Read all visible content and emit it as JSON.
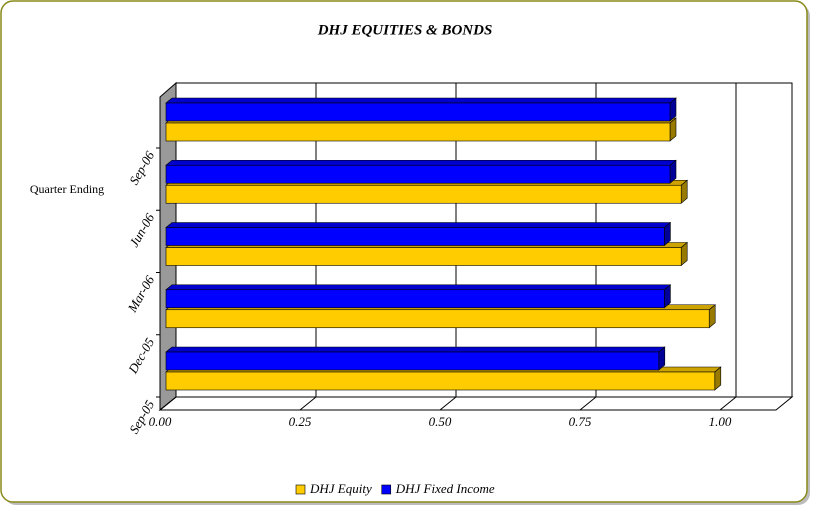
{
  "chart_data": {
    "type": "bar",
    "orientation": "horizontal",
    "title": "DHJ EQUITIES & BONDS",
    "ylabel": "Quarter Ending",
    "categories": [
      "Sep-05",
      "Dec-05",
      "Mar-06",
      "Jun-06",
      "Sep-06"
    ],
    "series": [
      {
        "name": "DHJ Equity",
        "color": "#FFCC00",
        "values": [
          0.98,
          0.97,
          0.92,
          0.92,
          0.9
        ]
      },
      {
        "name": "DHJ Fixed Income",
        "color": "#0000FF",
        "values": [
          0.88,
          0.89,
          0.89,
          0.9,
          0.9
        ]
      }
    ],
    "xlim": [
      0,
      1.1
    ],
    "xticks": [
      {
        "value": 0,
        "label": "0.00"
      },
      {
        "value": 0.25,
        "label": "0.25"
      },
      {
        "value": 0.5,
        "label": "0.50"
      },
      {
        "value": 0.75,
        "label": "0.75"
      },
      {
        "value": 1,
        "label": "1.00"
      }
    ],
    "grid": true,
    "legend": "bottom"
  }
}
